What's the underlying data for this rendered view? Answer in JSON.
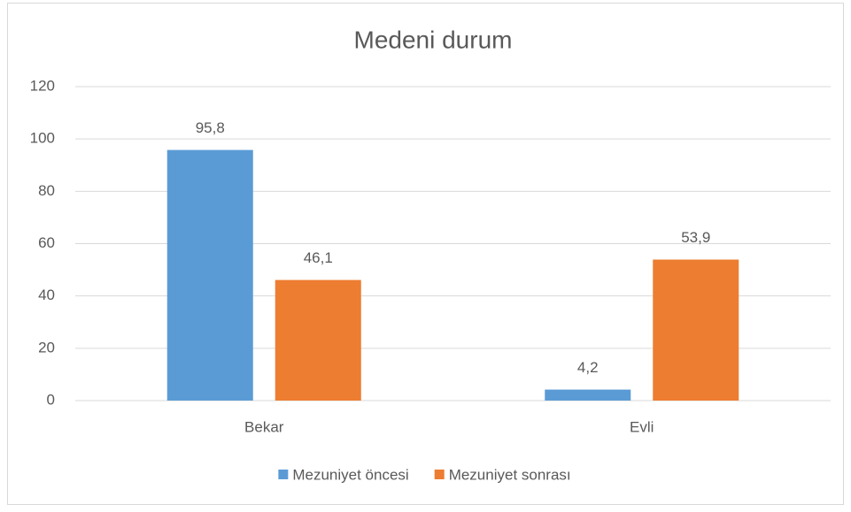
{
  "chart_data": {
    "type": "bar",
    "title": "Medeni durum",
    "categories": [
      "Bekar",
      "Evli"
    ],
    "series": [
      {
        "name": "Mezuniyet öncesi",
        "color": "#5b9bd5",
        "values": [
          95.8,
          4.2
        ],
        "value_labels": [
          "95,8",
          "4,2"
        ]
      },
      {
        "name": "Mezuniyet sonrası",
        "color": "#ed7d31",
        "values": [
          46.1,
          53.9
        ],
        "value_labels": [
          "46,1",
          "53,9"
        ]
      }
    ],
    "ylim": [
      0,
      120
    ],
    "yticks": [
      0,
      20,
      40,
      60,
      80,
      100,
      120
    ],
    "grid": true,
    "legend": "bottom"
  }
}
